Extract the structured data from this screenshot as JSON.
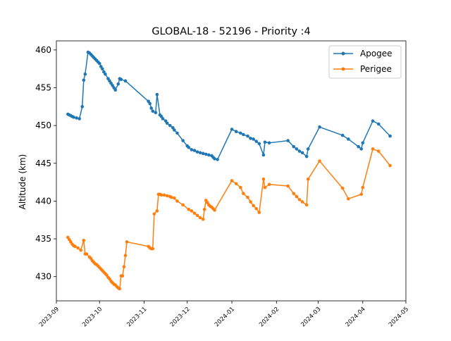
{
  "chart_data": {
    "type": "line",
    "title": "GLOBAL-18 - 52196 - Priority :4",
    "xlabel": "",
    "ylabel": "Altitude (km)",
    "x_ticks": [
      "2023-09",
      "2023-10",
      "2023-11",
      "2023-12",
      "2024-01",
      "2024-02",
      "2024-03",
      "2024-04",
      "2024-05"
    ],
    "y_ticks": [
      430,
      435,
      440,
      445,
      450,
      455,
      460
    ],
    "xlim": [
      "2023-09-01",
      "2024-05-01"
    ],
    "ylim": [
      426.8,
      461.2
    ],
    "grid": false,
    "legend_position": "top-right",
    "series": [
      {
        "name": "Apogee",
        "color": "#1f77b4",
        "points": [
          [
            "2023-09-09",
            451.5
          ],
          [
            "2023-09-10",
            451.4
          ],
          [
            "2023-09-11",
            451.3
          ],
          [
            "2023-09-12",
            451.2
          ],
          [
            "2023-09-13",
            451.1
          ],
          [
            "2023-09-15",
            451.0
          ],
          [
            "2023-09-17",
            450.9
          ],
          [
            "2023-09-19",
            452.5
          ],
          [
            "2023-09-20",
            456.0
          ],
          [
            "2023-09-21",
            456.8
          ],
          [
            "2023-09-23",
            459.7
          ],
          [
            "2023-09-24",
            459.6
          ],
          [
            "2023-09-25",
            459.4
          ],
          [
            "2023-09-26",
            459.2
          ],
          [
            "2023-09-27",
            459.0
          ],
          [
            "2023-09-28",
            458.8
          ],
          [
            "2023-09-29",
            458.6
          ],
          [
            "2023-09-30",
            458.4
          ],
          [
            "2023-10-01",
            458.2
          ],
          [
            "2023-10-02",
            457.8
          ],
          [
            "2023-10-03",
            457.5
          ],
          [
            "2023-10-04",
            457.1
          ],
          [
            "2023-10-05",
            456.8
          ],
          [
            "2023-10-07",
            456.2
          ],
          [
            "2023-10-08",
            455.9
          ],
          [
            "2023-10-09",
            455.6
          ],
          [
            "2023-10-10",
            455.3
          ],
          [
            "2023-10-11",
            455.0
          ],
          [
            "2023-10-12",
            454.7
          ],
          [
            "2023-10-14",
            455.5
          ],
          [
            "2023-10-15",
            456.2
          ],
          [
            "2023-10-16",
            456.1
          ],
          [
            "2023-10-19",
            455.9
          ],
          [
            "2023-11-04",
            453.2
          ],
          [
            "2023-11-05",
            452.9
          ],
          [
            "2023-11-06",
            452.3
          ],
          [
            "2023-11-07",
            451.9
          ],
          [
            "2023-11-09",
            451.7
          ],
          [
            "2023-11-10",
            454.1
          ],
          [
            "2023-11-12",
            451.4
          ],
          [
            "2023-11-13",
            451.2
          ],
          [
            "2023-11-14",
            450.9
          ],
          [
            "2023-11-16",
            450.6
          ],
          [
            "2023-11-17",
            450.3
          ],
          [
            "2023-11-19",
            450.0
          ],
          [
            "2023-11-21",
            449.7
          ],
          [
            "2023-11-22",
            449.4
          ],
          [
            "2023-11-24",
            449.0
          ],
          [
            "2023-11-28",
            448.0
          ],
          [
            "2023-12-01",
            447.3
          ],
          [
            "2023-12-02",
            447.1
          ],
          [
            "2023-12-04",
            446.8
          ],
          [
            "2023-12-06",
            446.7
          ],
          [
            "2023-12-08",
            446.5
          ],
          [
            "2023-12-10",
            446.4
          ],
          [
            "2023-12-12",
            446.3
          ],
          [
            "2023-12-14",
            446.2
          ],
          [
            "2023-12-16",
            446.1
          ],
          [
            "2023-12-18",
            446.0
          ],
          [
            "2023-12-19",
            445.8
          ],
          [
            "2023-12-20",
            445.6
          ],
          [
            "2023-12-22",
            445.5
          ],
          [
            "2024-01-01",
            449.5
          ],
          [
            "2024-01-04",
            449.2
          ],
          [
            "2024-01-07",
            449.0
          ],
          [
            "2024-01-09",
            448.8
          ],
          [
            "2024-01-12",
            448.6
          ],
          [
            "2024-01-14",
            448.3
          ],
          [
            "2024-01-16",
            448.2
          ],
          [
            "2024-01-18",
            447.9
          ],
          [
            "2024-01-20",
            447.6
          ],
          [
            "2024-01-23",
            446.1
          ],
          [
            "2024-01-24",
            447.8
          ],
          [
            "2024-01-27",
            447.7
          ],
          [
            "2024-02-09",
            448.0
          ],
          [
            "2024-02-13",
            447.2
          ],
          [
            "2024-02-15",
            446.9
          ],
          [
            "2024-02-17",
            446.6
          ],
          [
            "2024-02-19",
            446.4
          ],
          [
            "2024-02-22",
            445.9
          ],
          [
            "2024-02-23",
            446.9
          ],
          [
            "2024-03-02",
            449.8
          ],
          [
            "2024-03-18",
            448.7
          ],
          [
            "2024-03-22",
            448.2
          ],
          [
            "2024-03-29",
            447.2
          ],
          [
            "2024-03-31",
            446.9
          ],
          [
            "2024-04-01",
            447.7
          ],
          [
            "2024-04-08",
            450.6
          ],
          [
            "2024-04-12",
            450.2
          ],
          [
            "2024-04-20",
            448.6
          ]
        ]
      },
      {
        "name": "Perigee",
        "color": "#ff7f0e",
        "points": [
          [
            "2023-09-09",
            435.2
          ],
          [
            "2023-09-10",
            434.9
          ],
          [
            "2023-09-11",
            434.6
          ],
          [
            "2023-09-12",
            434.3
          ],
          [
            "2023-09-13",
            434.1
          ],
          [
            "2023-09-14",
            434.0
          ],
          [
            "2023-09-16",
            433.8
          ],
          [
            "2023-09-18",
            433.5
          ],
          [
            "2023-09-20",
            434.8
          ],
          [
            "2023-09-21",
            433.0
          ],
          [
            "2023-09-22",
            433.0
          ],
          [
            "2023-09-24",
            432.6
          ],
          [
            "2023-09-25",
            432.4
          ],
          [
            "2023-09-26",
            432.1
          ],
          [
            "2023-09-27",
            431.9
          ],
          [
            "2023-09-28",
            431.7
          ],
          [
            "2023-09-29",
            431.6
          ],
          [
            "2023-09-30",
            431.4
          ],
          [
            "2023-10-01",
            431.2
          ],
          [
            "2023-10-02",
            431.0
          ],
          [
            "2023-10-03",
            430.8
          ],
          [
            "2023-10-04",
            430.6
          ],
          [
            "2023-10-05",
            430.4
          ],
          [
            "2023-10-06",
            430.2
          ],
          [
            "2023-10-07",
            429.9
          ],
          [
            "2023-10-08",
            429.7
          ],
          [
            "2023-10-09",
            429.4
          ],
          [
            "2023-10-10",
            429.2
          ],
          [
            "2023-10-11",
            429.0
          ],
          [
            "2023-10-12",
            428.9
          ],
          [
            "2023-10-13",
            428.7
          ],
          [
            "2023-10-14",
            428.5
          ],
          [
            "2023-10-15",
            428.4
          ],
          [
            "2023-10-16",
            430.1
          ],
          [
            "2023-10-17",
            430.1
          ],
          [
            "2023-10-18",
            431.3
          ],
          [
            "2023-10-19",
            432.8
          ],
          [
            "2023-10-20",
            434.6
          ],
          [
            "2023-11-04",
            434.0
          ],
          [
            "2023-11-05",
            433.8
          ],
          [
            "2023-11-06",
            433.7
          ],
          [
            "2023-11-07",
            433.7
          ],
          [
            "2023-11-08",
            438.3
          ],
          [
            "2023-11-10",
            438.7
          ],
          [
            "2023-11-11",
            440.9
          ],
          [
            "2023-11-12",
            440.9
          ],
          [
            "2023-11-13",
            440.8
          ],
          [
            "2023-11-15",
            440.8
          ],
          [
            "2023-11-17",
            440.7
          ],
          [
            "2023-11-19",
            440.6
          ],
          [
            "2023-11-20",
            440.5
          ],
          [
            "2023-11-22",
            440.4
          ],
          [
            "2023-11-24",
            440.0
          ],
          [
            "2023-11-28",
            439.5
          ],
          [
            "2023-12-02",
            438.9
          ],
          [
            "2023-12-04",
            438.7
          ],
          [
            "2023-12-06",
            438.4
          ],
          [
            "2023-12-08",
            438.1
          ],
          [
            "2023-12-10",
            437.8
          ],
          [
            "2023-12-12",
            437.6
          ],
          [
            "2023-12-13",
            438.9
          ],
          [
            "2023-12-14",
            440.1
          ],
          [
            "2023-12-15",
            439.8
          ],
          [
            "2023-12-16",
            439.5
          ],
          [
            "2023-12-17",
            439.3
          ],
          [
            "2023-12-18",
            439.2
          ],
          [
            "2023-12-19",
            439.0
          ],
          [
            "2023-12-20",
            438.8
          ],
          [
            "2024-01-01",
            442.7
          ],
          [
            "2024-01-04",
            442.3
          ],
          [
            "2024-01-07",
            441.8
          ],
          [
            "2024-01-09",
            441.0
          ],
          [
            "2024-01-12",
            440.5
          ],
          [
            "2024-01-14",
            439.9
          ],
          [
            "2024-01-16",
            439.4
          ],
          [
            "2024-01-18",
            439.0
          ],
          [
            "2024-01-20",
            438.5
          ],
          [
            "2024-01-23",
            442.9
          ],
          [
            "2024-01-24",
            441.8
          ],
          [
            "2024-01-27",
            442.2
          ],
          [
            "2024-02-09",
            442.0
          ],
          [
            "2024-02-13",
            441.0
          ],
          [
            "2024-02-15",
            440.6
          ],
          [
            "2024-02-17",
            440.2
          ],
          [
            "2024-02-19",
            439.9
          ],
          [
            "2024-02-22",
            439.5
          ],
          [
            "2024-02-23",
            442.9
          ],
          [
            "2024-03-02",
            445.3
          ],
          [
            "2024-03-18",
            441.7
          ],
          [
            "2024-03-22",
            440.3
          ],
          [
            "2024-03-31",
            440.9
          ],
          [
            "2024-04-01",
            441.8
          ],
          [
            "2024-04-08",
            446.9
          ],
          [
            "2024-04-12",
            446.6
          ],
          [
            "2024-04-20",
            444.7
          ]
        ]
      }
    ]
  }
}
